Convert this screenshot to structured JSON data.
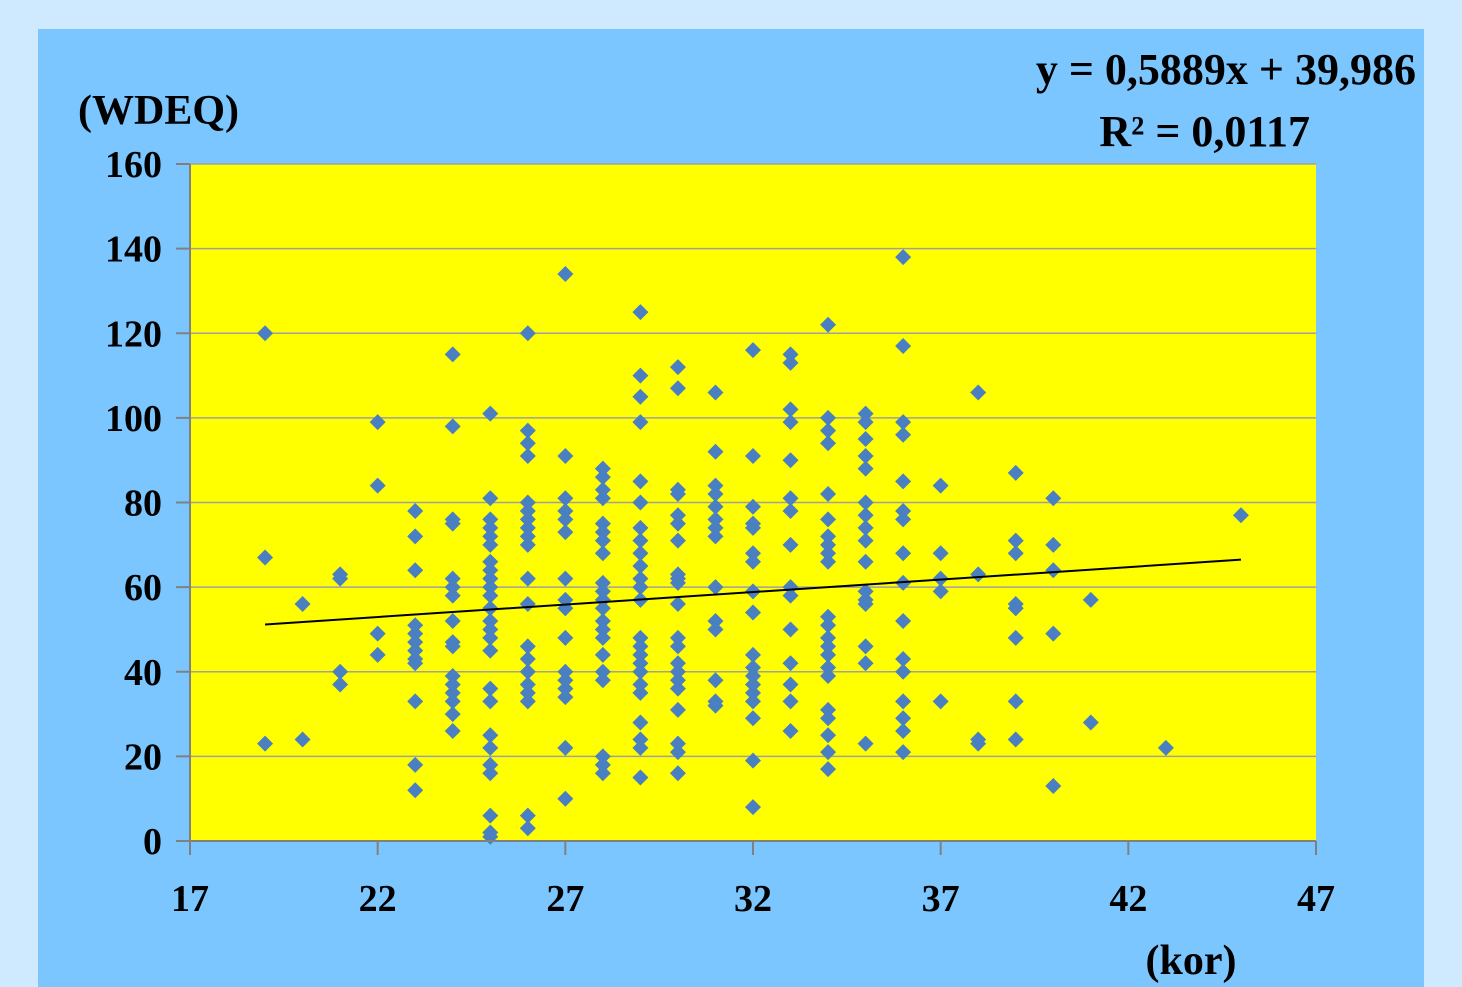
{
  "chart_data": {
    "type": "scatter",
    "title": "",
    "xlabel": "(kor)",
    "ylabel": "(WDEQ)",
    "xlim": [
      17,
      47
    ],
    "ylim": [
      0,
      160
    ],
    "xticks": [
      17,
      22,
      27,
      32,
      37,
      42,
      47
    ],
    "yticks": [
      0,
      20,
      40,
      60,
      80,
      100,
      120,
      140,
      160
    ],
    "grid": "horizontal",
    "colors": {
      "plot_background": "#ffff00",
      "frame_background": "#7cc6ff",
      "marker": "#4a7fc1",
      "trendline": "#000000",
      "gridline": "#a0a0a0"
    },
    "trendline": {
      "type": "linear",
      "equation": "y = 0,5889x + 39,986",
      "r_squared": "R² = 0,0117",
      "slope": 0.5889,
      "intercept": 39.986,
      "x_range": [
        19,
        45
      ]
    },
    "points": [
      [
        19,
        120
      ],
      [
        19,
        67
      ],
      [
        19,
        23
      ],
      [
        20,
        56
      ],
      [
        20,
        24
      ],
      [
        21,
        63
      ],
      [
        21,
        62
      ],
      [
        21,
        40
      ],
      [
        21,
        37
      ],
      [
        22,
        99
      ],
      [
        22,
        84
      ],
      [
        22,
        49
      ],
      [
        22,
        44
      ],
      [
        23,
        78
      ],
      [
        23,
        72
      ],
      [
        23,
        64
      ],
      [
        23,
        51
      ],
      [
        23,
        49
      ],
      [
        23,
        47
      ],
      [
        23,
        45
      ],
      [
        23,
        43
      ],
      [
        23,
        42
      ],
      [
        23,
        33
      ],
      [
        23,
        18
      ],
      [
        23,
        12
      ],
      [
        24,
        115
      ],
      [
        24,
        98
      ],
      [
        24,
        76
      ],
      [
        24,
        75
      ],
      [
        24,
        62
      ],
      [
        24,
        60
      ],
      [
        24,
        58
      ],
      [
        24,
        52
      ],
      [
        24,
        47
      ],
      [
        24,
        46
      ],
      [
        24,
        39
      ],
      [
        24,
        37
      ],
      [
        24,
        35
      ],
      [
        24,
        33
      ],
      [
        24,
        30
      ],
      [
        24,
        26
      ],
      [
        25,
        101
      ],
      [
        25,
        81
      ],
      [
        25,
        76
      ],
      [
        25,
        74
      ],
      [
        25,
        72
      ],
      [
        25,
        70
      ],
      [
        25,
        66
      ],
      [
        25,
        64
      ],
      [
        25,
        62
      ],
      [
        25,
        60
      ],
      [
        25,
        58
      ],
      [
        25,
        55
      ],
      [
        25,
        52
      ],
      [
        25,
        50
      ],
      [
        25,
        48
      ],
      [
        25,
        45
      ],
      [
        25,
        36
      ],
      [
        25,
        33
      ],
      [
        25,
        25
      ],
      [
        25,
        22
      ],
      [
        25,
        18
      ],
      [
        25,
        16
      ],
      [
        25,
        6
      ],
      [
        25,
        2
      ],
      [
        25,
        1
      ],
      [
        26,
        120
      ],
      [
        26,
        97
      ],
      [
        26,
        94
      ],
      [
        26,
        91
      ],
      [
        26,
        80
      ],
      [
        26,
        78
      ],
      [
        26,
        76
      ],
      [
        26,
        74
      ],
      [
        26,
        72
      ],
      [
        26,
        70
      ],
      [
        26,
        62
      ],
      [
        26,
        56
      ],
      [
        26,
        46
      ],
      [
        26,
        43
      ],
      [
        26,
        40
      ],
      [
        26,
        37
      ],
      [
        26,
        35
      ],
      [
        26,
        33
      ],
      [
        26,
        6
      ],
      [
        26,
        3
      ],
      [
        27,
        134
      ],
      [
        27,
        91
      ],
      [
        27,
        81
      ],
      [
        27,
        78
      ],
      [
        27,
        76
      ],
      [
        27,
        73
      ],
      [
        27,
        62
      ],
      [
        27,
        57
      ],
      [
        27,
        55
      ],
      [
        27,
        48
      ],
      [
        27,
        40
      ],
      [
        27,
        38
      ],
      [
        27,
        36
      ],
      [
        27,
        34
      ],
      [
        27,
        22
      ],
      [
        27,
        10
      ],
      [
        28,
        88
      ],
      [
        28,
        86
      ],
      [
        28,
        83
      ],
      [
        28,
        81
      ],
      [
        28,
        75
      ],
      [
        28,
        73
      ],
      [
        28,
        71
      ],
      [
        28,
        68
      ],
      [
        28,
        61
      ],
      [
        28,
        59
      ],
      [
        28,
        57
      ],
      [
        28,
        55
      ],
      [
        28,
        52
      ],
      [
        28,
        50
      ],
      [
        28,
        48
      ],
      [
        28,
        44
      ],
      [
        28,
        40
      ],
      [
        28,
        38
      ],
      [
        28,
        20
      ],
      [
        28,
        18
      ],
      [
        28,
        16
      ],
      [
        29,
        125
      ],
      [
        29,
        110
      ],
      [
        29,
        105
      ],
      [
        29,
        99
      ],
      [
        29,
        85
      ],
      [
        29,
        80
      ],
      [
        29,
        74
      ],
      [
        29,
        71
      ],
      [
        29,
        68
      ],
      [
        29,
        65
      ],
      [
        29,
        62
      ],
      [
        29,
        60
      ],
      [
        29,
        57
      ],
      [
        29,
        48
      ],
      [
        29,
        46
      ],
      [
        29,
        44
      ],
      [
        29,
        42
      ],
      [
        29,
        40
      ],
      [
        29,
        37
      ],
      [
        29,
        35
      ],
      [
        29,
        28
      ],
      [
        29,
        24
      ],
      [
        29,
        22
      ],
      [
        29,
        15
      ],
      [
        30,
        112
      ],
      [
        30,
        107
      ],
      [
        30,
        83
      ],
      [
        30,
        82
      ],
      [
        30,
        77
      ],
      [
        30,
        75
      ],
      [
        30,
        71
      ],
      [
        30,
        63
      ],
      [
        30,
        62
      ],
      [
        30,
        61
      ],
      [
        30,
        56
      ],
      [
        30,
        48
      ],
      [
        30,
        46
      ],
      [
        30,
        42
      ],
      [
        30,
        40
      ],
      [
        30,
        38
      ],
      [
        30,
        36
      ],
      [
        30,
        31
      ],
      [
        30,
        23
      ],
      [
        30,
        21
      ],
      [
        30,
        16
      ],
      [
        31,
        106
      ],
      [
        31,
        92
      ],
      [
        31,
        84
      ],
      [
        31,
        82
      ],
      [
        31,
        79
      ],
      [
        31,
        76
      ],
      [
        31,
        74
      ],
      [
        31,
        72
      ],
      [
        31,
        60
      ],
      [
        31,
        52
      ],
      [
        31,
        50
      ],
      [
        31,
        38
      ],
      [
        31,
        33
      ],
      [
        31,
        32
      ],
      [
        32,
        116
      ],
      [
        32,
        91
      ],
      [
        32,
        79
      ],
      [
        32,
        75
      ],
      [
        32,
        74
      ],
      [
        32,
        68
      ],
      [
        32,
        66
      ],
      [
        32,
        59
      ],
      [
        32,
        54
      ],
      [
        32,
        44
      ],
      [
        32,
        41
      ],
      [
        32,
        39
      ],
      [
        32,
        37
      ],
      [
        32,
        35
      ],
      [
        32,
        33
      ],
      [
        32,
        29
      ],
      [
        32,
        19
      ],
      [
        32,
        8
      ],
      [
        33,
        115
      ],
      [
        33,
        113
      ],
      [
        33,
        102
      ],
      [
        33,
        99
      ],
      [
        33,
        90
      ],
      [
        33,
        81
      ],
      [
        33,
        78
      ],
      [
        33,
        70
      ],
      [
        33,
        60
      ],
      [
        33,
        58
      ],
      [
        33,
        50
      ],
      [
        33,
        42
      ],
      [
        33,
        37
      ],
      [
        33,
        33
      ],
      [
        33,
        26
      ],
      [
        34,
        122
      ],
      [
        34,
        100
      ],
      [
        34,
        97
      ],
      [
        34,
        94
      ],
      [
        34,
        82
      ],
      [
        34,
        76
      ],
      [
        34,
        72
      ],
      [
        34,
        70
      ],
      [
        34,
        68
      ],
      [
        34,
        66
      ],
      [
        34,
        53
      ],
      [
        34,
        51
      ],
      [
        34,
        48
      ],
      [
        34,
        46
      ],
      [
        34,
        44
      ],
      [
        34,
        41
      ],
      [
        34,
        39
      ],
      [
        34,
        31
      ],
      [
        34,
        29
      ],
      [
        34,
        25
      ],
      [
        34,
        21
      ],
      [
        34,
        17
      ],
      [
        35,
        101
      ],
      [
        35,
        99
      ],
      [
        35,
        95
      ],
      [
        35,
        91
      ],
      [
        35,
        88
      ],
      [
        35,
        80
      ],
      [
        35,
        77
      ],
      [
        35,
        74
      ],
      [
        35,
        71
      ],
      [
        35,
        66
      ],
      [
        35,
        59
      ],
      [
        35,
        57
      ],
      [
        35,
        56
      ],
      [
        35,
        46
      ],
      [
        35,
        42
      ],
      [
        35,
        23
      ],
      [
        36,
        138
      ],
      [
        36,
        117
      ],
      [
        36,
        99
      ],
      [
        36,
        96
      ],
      [
        36,
        85
      ],
      [
        36,
        78
      ],
      [
        36,
        76
      ],
      [
        36,
        68
      ],
      [
        36,
        61
      ],
      [
        36,
        52
      ],
      [
        36,
        43
      ],
      [
        36,
        40
      ],
      [
        36,
        33
      ],
      [
        36,
        29
      ],
      [
        36,
        26
      ],
      [
        36,
        21
      ],
      [
        37,
        84
      ],
      [
        37,
        68
      ],
      [
        37,
        62
      ],
      [
        37,
        59
      ],
      [
        37,
        33
      ],
      [
        38,
        106
      ],
      [
        38,
        63
      ],
      [
        38,
        24
      ],
      [
        38,
        23
      ],
      [
        39,
        87
      ],
      [
        39,
        71
      ],
      [
        39,
        68
      ],
      [
        39,
        56
      ],
      [
        39,
        55
      ],
      [
        39,
        48
      ],
      [
        39,
        33
      ],
      [
        39,
        24
      ],
      [
        40,
        81
      ],
      [
        40,
        70
      ],
      [
        40,
        64
      ],
      [
        40,
        49
      ],
      [
        40,
        13
      ],
      [
        41,
        57
      ],
      [
        41,
        28
      ],
      [
        43,
        22
      ],
      [
        45,
        77
      ]
    ]
  }
}
